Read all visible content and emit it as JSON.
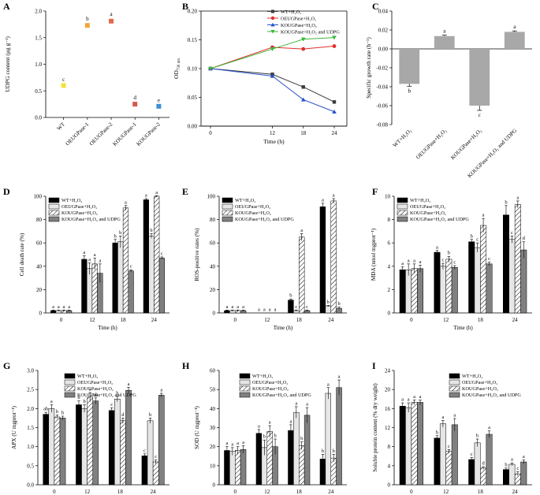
{
  "chart_data": [
    {
      "id": "A",
      "type": "scatter",
      "panel_letter": "A",
      "ylabel": "UDPG content (μg g⁻¹)",
      "ylim": [
        0,
        2
      ],
      "yticks": [
        0,
        0.5,
        1.0,
        1.5,
        2.0
      ],
      "ytick_labels": [
        "0.0",
        "0.5",
        "1.0",
        "1.5",
        "2.0"
      ],
      "categories": [
        "WT",
        "OEUGPase-1",
        "OEUGPase-2",
        "KOUGPase-1",
        "KOUGPase-2"
      ],
      "values": [
        0.6,
        1.73,
        1.81,
        0.25,
        0.21
      ],
      "errors": [
        0.02,
        0.03,
        0.04,
        0.03,
        0.02
      ],
      "colors": [
        "#f2e23a",
        "#f0a63c",
        "#e06a4a",
        "#d25a4a",
        "#3b8fd6"
      ],
      "letters": [
        "c",
        "b",
        "a",
        "d",
        "e"
      ]
    },
    {
      "id": "B",
      "type": "line",
      "panel_letter": "B",
      "xlabel": "Time (h)",
      "ylabel": "OD",
      "ylabel_sub": "730 nm",
      "x": [
        0,
        12,
        18,
        24
      ],
      "ylim": [
        0,
        0.2
      ],
      "yticks": [
        0,
        0.05,
        0.1,
        0.15,
        0.2
      ],
      "ytick_labels": [
        "0.00",
        "0.05",
        "0.10",
        "0.15",
        "0.20"
      ],
      "series": [
        {
          "name": "WT+H₂O₂",
          "color": "#3a3a3a",
          "marker": "square",
          "values": [
            0.1,
            0.09,
            0.068,
            0.042
          ]
        },
        {
          "name": "OEUGPase+H₂O₂",
          "color": "#e0302a",
          "marker": "circle",
          "values": [
            0.1,
            0.137,
            0.134,
            0.139
          ]
        },
        {
          "name": "KOUGPase+H₂O₂",
          "color": "#2a52c8",
          "marker": "triangle-up",
          "values": [
            0.1,
            0.087,
            0.046,
            0.025
          ]
        },
        {
          "name": "KOUGPase+H₂O₂ and UDPG",
          "color": "#3ab83a",
          "marker": "triangle-down",
          "values": [
            0.1,
            0.134,
            0.151,
            0.154
          ]
        }
      ]
    },
    {
      "id": "C",
      "type": "bar",
      "panel_letter": "C",
      "ylabel": "Specific growth rate (h⁻¹)",
      "ylim": [
        -0.08,
        0.04
      ],
      "yticks": [
        -0.08,
        -0.06,
        -0.04,
        -0.02,
        0,
        0.02,
        0.04
      ],
      "ytick_labels": [
        "-0.08",
        "-0.06",
        "-0.04",
        "-0.02",
        "0.00",
        "0.02",
        "0.04"
      ],
      "categories": [
        "WT+H₂O₂",
        "OEUGPase+H₂O₂",
        "KOUGPase+H₂O₂",
        "KOUGPase+H₂O₂ and UDPG"
      ],
      "values": [
        -0.037,
        0.0135,
        -0.06,
        0.018
      ],
      "errors": [
        0.0025,
        0.001,
        0.005,
        0.001
      ],
      "letters": [
        "b",
        "a",
        "c",
        "a"
      ]
    },
    {
      "id": "D",
      "type": "bar",
      "panel_letter": "D",
      "xlabel": "Time (h)",
      "ylabel": "Cell death rate (%)",
      "ylim": [
        0,
        100
      ],
      "yticks": [
        0,
        20,
        40,
        60,
        80,
        100
      ],
      "ytick_labels": [
        "0",
        "20",
        "40",
        "60",
        "80",
        "100"
      ],
      "categories": [
        "0",
        "12",
        "18",
        "24"
      ],
      "legend": [
        "WT+H₂O₂",
        "OEUGPase+H₂O₂",
        "KOUGPase+H₂O₂",
        "KOUGPase+H₂O₂ and UDPG"
      ],
      "series": [
        {
          "name": "WT+H₂O₂",
          "values": [
            2,
            46,
            60,
            97
          ],
          "errors": [
            0.5,
            3,
            3,
            1
          ],
          "letters": [
            "a",
            "a",
            "b",
            "a"
          ]
        },
        {
          "name": "OEUGPase+H₂O₂",
          "values": [
            2,
            38,
            61,
            66
          ],
          "errors": [
            0.5,
            5,
            5,
            2
          ],
          "letters": [
            "a",
            "a",
            "b",
            "b"
          ]
        },
        {
          "name": "KOUGPase+H₂O₂",
          "values": [
            2,
            42,
            90,
            100
          ],
          "errors": [
            0.5,
            5,
            2,
            0.5
          ],
          "letters": [
            "a",
            "a",
            "a",
            "a"
          ]
        },
        {
          "name": "KOUGPase+H₂O₂ and UDPG",
          "values": [
            2,
            34,
            36,
            47
          ],
          "errors": [
            0.5,
            8,
            1,
            1
          ],
          "letters": [
            "a",
            "a",
            "c",
            "c"
          ]
        }
      ]
    },
    {
      "id": "E",
      "type": "bar",
      "panel_letter": "E",
      "xlabel": "Time (h)",
      "ylabel": "ROS-positive rates (%)",
      "ylim": [
        0,
        100
      ],
      "yticks": [
        0,
        20,
        40,
        60,
        80,
        100
      ],
      "ytick_labels": [
        "0",
        "20",
        "40",
        "60",
        "80",
        "100"
      ],
      "categories": [
        "0",
        "12",
        "18",
        "24"
      ],
      "legend": [
        "WT+H₂O₂",
        "OEUGPase+H₂O₂",
        "KOUGPase+H₂O₂",
        "KOUGPase+H₂O₂ and UDPG"
      ],
      "series": [
        {
          "name": "WT+H₂O₂",
          "values": [
            2,
            0,
            11,
            91
          ],
          "errors": [
            0.5,
            0,
            1,
            3
          ],
          "letters": [
            "a",
            "a",
            "b",
            "a"
          ]
        },
        {
          "name": "OEUGPase+H₂O₂",
          "values": [
            2,
            0,
            2,
            6
          ],
          "errors": [
            0.5,
            0,
            0.5,
            0.5
          ],
          "letters": [
            "a",
            "a",
            "c",
            "b"
          ]
        },
        {
          "name": "KOUGPase+H₂O₂",
          "values": [
            2,
            0,
            65,
            96
          ],
          "errors": [
            0.5,
            0,
            3,
            2
          ],
          "letters": [
            "a",
            "a",
            "a",
            "a"
          ]
        },
        {
          "name": "KOUGPase+H₂O₂ and UDPG",
          "values": [
            2,
            0,
            2,
            4
          ],
          "errors": [
            0.5,
            0,
            0.5,
            1
          ],
          "letters": [
            "a",
            "a",
            "c",
            "b"
          ]
        }
      ]
    },
    {
      "id": "F",
      "type": "bar",
      "panel_letter": "F",
      "xlabel": "Time (h)",
      "ylabel": "MDA (nmol mgprot⁻¹)",
      "ylim": [
        0,
        10
      ],
      "yticks": [
        0,
        2,
        4,
        6,
        8,
        10
      ],
      "ytick_labels": [
        "0",
        "2",
        "4",
        "6",
        "8",
        "10"
      ],
      "categories": [
        "0",
        "12",
        "18",
        "24"
      ],
      "legend": [
        "WT+H₂O₂",
        "OEUGPase+H₂O₂",
        "KOUGPase+H₂O₂",
        "KOUGPase+H₂O₂ and UDPG"
      ],
      "series": [
        {
          "name": "WT+H₂O₂",
          "values": [
            3.7,
            5.2,
            6.1,
            8.4
          ],
          "errors": [
            0.25,
            0.15,
            0.2,
            0.8
          ],
          "letters": [
            "a",
            "a",
            "b",
            "b"
          ]
        },
        {
          "name": "OEUGPase+H₂O₂",
          "values": [
            3.7,
            4.0,
            5.6,
            6.3
          ],
          "errors": [
            0.5,
            0.25,
            0.4,
            0.3
          ],
          "letters": [
            "a",
            "c",
            "c",
            "c"
          ]
        },
        {
          "name": "KOUGPase+H₂O₂",
          "values": [
            3.8,
            4.6,
            7.5,
            9.3
          ],
          "errors": [
            0.4,
            0.25,
            0.6,
            0.3
          ],
          "letters": [
            "a",
            "b",
            "a",
            "a"
          ]
        },
        {
          "name": "KOUGPase+H₂O₂ and UDPG",
          "values": [
            3.8,
            3.9,
            4.2,
            5.4
          ],
          "errors": [
            0.3,
            0.15,
            0.15,
            0.7
          ],
          "letters": [
            "a",
            "c",
            "c",
            "d"
          ]
        }
      ]
    },
    {
      "id": "G",
      "type": "bar",
      "panel_letter": "G",
      "xlabel": "Time (h)",
      "ylabel": "APX (U mgprot⁻¹)",
      "ylim": [
        0,
        3.0
      ],
      "yticks": [
        0,
        0.5,
        1.0,
        1.5,
        2.0,
        2.5,
        3.0
      ],
      "ytick_labels": [
        "0.0",
        "0.5",
        "1.0",
        "1.5",
        "2.0",
        "2.5",
        "3.0"
      ],
      "categories": [
        "0",
        "12",
        "18",
        "24"
      ],
      "legend": [
        "WT+H₂O₂",
        "OEUGPase+H₂O₂",
        "KOUGPase+H₂O₂",
        "KOUGPase+H₂O₂ and UDPG"
      ],
      "series": [
        {
          "name": "WT+H₂O₂",
          "values": [
            1.85,
            2.1,
            1.95,
            0.76
          ],
          "errors": [
            0.05,
            0.1,
            0.07,
            0.05
          ],
          "letters": [
            "ab",
            "b",
            "c",
            "c"
          ]
        },
        {
          "name": "OEUGPase+H₂O₂",
          "values": [
            2.0,
            2.0,
            2.25,
            1.68
          ],
          "errors": [
            0.1,
            0.1,
            0.07,
            0.07
          ],
          "letters": [
            "a",
            "b",
            "b",
            "b"
          ]
        },
        {
          "name": "KOUGPase+H₂O₂",
          "values": [
            1.78,
            2.3,
            1.68,
            0.6
          ],
          "errors": [
            0.05,
            0.12,
            0.07,
            0.05
          ],
          "letters": [
            "b",
            "a",
            "d",
            "c"
          ]
        },
        {
          "name": "KOUGPase+H₂O₂ and UDPG",
          "values": [
            1.75,
            2.2,
            2.48,
            2.35
          ],
          "errors": [
            0.05,
            0.08,
            0.08,
            0.05
          ],
          "letters": [
            "b",
            "ab",
            "a",
            "a"
          ]
        }
      ]
    },
    {
      "id": "H",
      "type": "bar",
      "panel_letter": "H",
      "xlabel": "Time (h)",
      "ylabel": "SOD (U mgprot⁻¹)",
      "ylim": [
        0,
        60
      ],
      "yticks": [
        0,
        10,
        20,
        30,
        40,
        50,
        60
      ],
      "ytick_labels": [
        "0",
        "10",
        "20",
        "30",
        "40",
        "50",
        "60"
      ],
      "categories": [
        "0",
        "12",
        "18",
        "24"
      ],
      "legend": [
        "WT+H₂O₂",
        "OEUGPase+H₂O₂",
        "KOUGPase+H₂O₂",
        "KOUGPase+H₂O₂ and UDPG"
      ],
      "series": [
        {
          "name": "WT+H₂O₂",
          "values": [
            18,
            27,
            28.5,
            13.5
          ],
          "errors": [
            2,
            2,
            3,
            2.5
          ],
          "letters": [
            "a",
            "a",
            "a",
            "b"
          ]
        },
        {
          "name": "OEUGPase+H₂O₂",
          "values": [
            17.5,
            19.5,
            38,
            48
          ],
          "errors": [
            2,
            4,
            3,
            3
          ],
          "letters": [
            "a",
            "b",
            "a",
            "a"
          ]
        },
        {
          "name": "KOUGPase+H₂O₂",
          "values": [
            18,
            28,
            20.5,
            14
          ],
          "errors": [
            2,
            3,
            2,
            2
          ],
          "letters": [
            "a",
            "a",
            "b",
            "b"
          ]
        },
        {
          "name": "KOUGPase+H₂O₂ and UDPG",
          "values": [
            18.5,
            20,
            36.5,
            51
          ],
          "errors": [
            2,
            4,
            4,
            4
          ],
          "letters": [
            "a",
            "b",
            "a",
            "a"
          ]
        }
      ]
    },
    {
      "id": "I",
      "type": "bar",
      "panel_letter": "I",
      "xlabel": "Time (h)",
      "ylabel": "Soluble protein content (% dry weight)",
      "ylim": [
        0,
        24
      ],
      "yticks": [
        0,
        4,
        8,
        12,
        16,
        20,
        24
      ],
      "ytick_labels": [
        "0",
        "4",
        "8",
        "12",
        "16",
        "20",
        "24"
      ],
      "categories": [
        "0",
        "12",
        "18",
        "24"
      ],
      "legend": [
        "WT+H₂O₂",
        "OEUGPase+H₂O₂",
        "KOUGPase+H₂O₂",
        "KOUGPase+H₂O₂ and UDPG"
      ],
      "series": [
        {
          "name": "WT+H₂O₂",
          "values": [
            16.5,
            9.8,
            5.3,
            3.2
          ],
          "errors": [
            0.7,
            0.5,
            0.4,
            0.3
          ],
          "letters": [
            "a",
            "b",
            "c",
            "b"
          ]
        },
        {
          "name": "OEUGPase+H₂O₂",
          "values": [
            16.2,
            12.8,
            8.8,
            4.3
          ],
          "errors": [
            1.0,
            0.7,
            0.8,
            0.3
          ],
          "letters": [
            "a",
            "a",
            "b",
            "a"
          ]
        },
        {
          "name": "KOUGPase+H₂O₂",
          "values": [
            17.3,
            7.0,
            3.5,
            2.3
          ],
          "errors": [
            0.5,
            0.4,
            0.3,
            0.4
          ],
          "letters": [
            "a",
            "c",
            "d",
            "c"
          ]
        },
        {
          "name": "KOUGPase+H₂O₂ and UDPG",
          "values": [
            17.3,
            12.6,
            10.6,
            4.8
          ],
          "errors": [
            0.5,
            1.3,
            0.7,
            0.4
          ],
          "letters": [
            "a",
            "a",
            "a",
            "a"
          ]
        }
      ]
    }
  ]
}
